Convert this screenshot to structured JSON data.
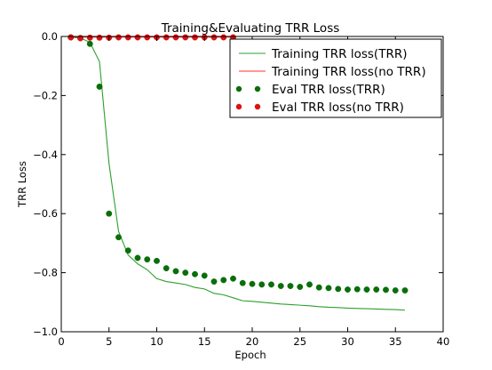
{
  "chart_data": {
    "type": "line",
    "title": "Training&Evaluating TRR Loss",
    "xlabel": "Epoch",
    "ylabel": "TRR Loss",
    "xlim": [
      0,
      40
    ],
    "ylim": [
      -1.0,
      0.0
    ],
    "xticks": [
      0,
      5,
      10,
      15,
      20,
      25,
      30,
      35,
      40
    ],
    "yticks": [
      0.0,
      -0.2,
      -0.4,
      -0.6,
      -0.8,
      -1.0
    ],
    "xtick_labels": [
      "0",
      "5",
      "10",
      "15",
      "20",
      "25",
      "30",
      "35",
      "40"
    ],
    "ytick_labels": [
      "0.0",
      "−0.2",
      "−0.4",
      "−0.6",
      "−0.8",
      "−1.0"
    ],
    "grid": false,
    "legend_position": "top-right",
    "series": [
      {
        "name": "Training TRR loss(TRR)",
        "style": "line",
        "color": "#2ca02c",
        "x": [
          1,
          2,
          3,
          4,
          5,
          6,
          7,
          8,
          9,
          10,
          11,
          12,
          13,
          14,
          15,
          16,
          17,
          18,
          19,
          20,
          21,
          22,
          23,
          24,
          25,
          26,
          27,
          28,
          29,
          30,
          31,
          32,
          33,
          34,
          35,
          36
        ],
        "y": [
          -0.003,
          -0.005,
          -0.02,
          -0.085,
          -0.43,
          -0.66,
          -0.74,
          -0.77,
          -0.79,
          -0.82,
          -0.83,
          -0.835,
          -0.84,
          -0.85,
          -0.855,
          -0.87,
          -0.875,
          -0.885,
          -0.895,
          -0.897,
          -0.9,
          -0.903,
          -0.906,
          -0.908,
          -0.91,
          -0.912,
          -0.915,
          -0.917,
          -0.918,
          -0.92,
          -0.921,
          -0.922,
          -0.923,
          -0.924,
          -0.925,
          -0.927
        ]
      },
      {
        "name": "Training TRR loss(no TRR)",
        "style": "line",
        "color": "#ff3333",
        "x": [
          1,
          2,
          3,
          4,
          5,
          6,
          7,
          8,
          9,
          10,
          11,
          12,
          13,
          14,
          15,
          16,
          17,
          18
        ],
        "y": [
          -0.002,
          -0.002,
          -0.002,
          -0.002,
          -0.002,
          -0.002,
          -0.002,
          -0.002,
          -0.002,
          -0.002,
          -0.002,
          -0.002,
          -0.002,
          -0.002,
          -0.002,
          -0.002,
          -0.002,
          -0.002
        ]
      },
      {
        "name": "Eval TRR loss(TRR)",
        "style": "markers",
        "color": "#0a6e0a",
        "x": [
          1,
          2,
          3,
          4,
          5,
          6,
          7,
          8,
          9,
          10,
          11,
          12,
          13,
          14,
          15,
          16,
          17,
          18,
          19,
          20,
          21,
          22,
          23,
          24,
          25,
          26,
          27,
          28,
          29,
          30,
          31,
          32,
          33,
          34,
          35,
          36
        ],
        "y": [
          -0.003,
          -0.005,
          -0.025,
          -0.17,
          -0.6,
          -0.68,
          -0.725,
          -0.75,
          -0.755,
          -0.76,
          -0.785,
          -0.795,
          -0.8,
          -0.805,
          -0.81,
          -0.83,
          -0.825,
          -0.82,
          -0.835,
          -0.838,
          -0.84,
          -0.84,
          -0.845,
          -0.845,
          -0.848,
          -0.84,
          -0.85,
          -0.852,
          -0.855,
          -0.857,
          -0.856,
          -0.857,
          -0.857,
          -0.858,
          -0.86,
          -0.86
        ]
      },
      {
        "name": "Eval TRR loss(no TRR)",
        "style": "markers",
        "color": "#dd1111",
        "x": [
          1,
          2,
          3,
          4,
          5,
          6,
          7,
          8,
          9,
          10,
          11,
          12,
          13,
          14,
          15,
          16,
          17,
          18
        ],
        "y": [
          -0.003,
          -0.006,
          -0.004,
          -0.004,
          -0.004,
          -0.003,
          -0.003,
          -0.003,
          -0.003,
          -0.003,
          -0.003,
          -0.003,
          -0.003,
          -0.003,
          -0.003,
          -0.003,
          -0.003,
          -0.003
        ]
      }
    ]
  }
}
